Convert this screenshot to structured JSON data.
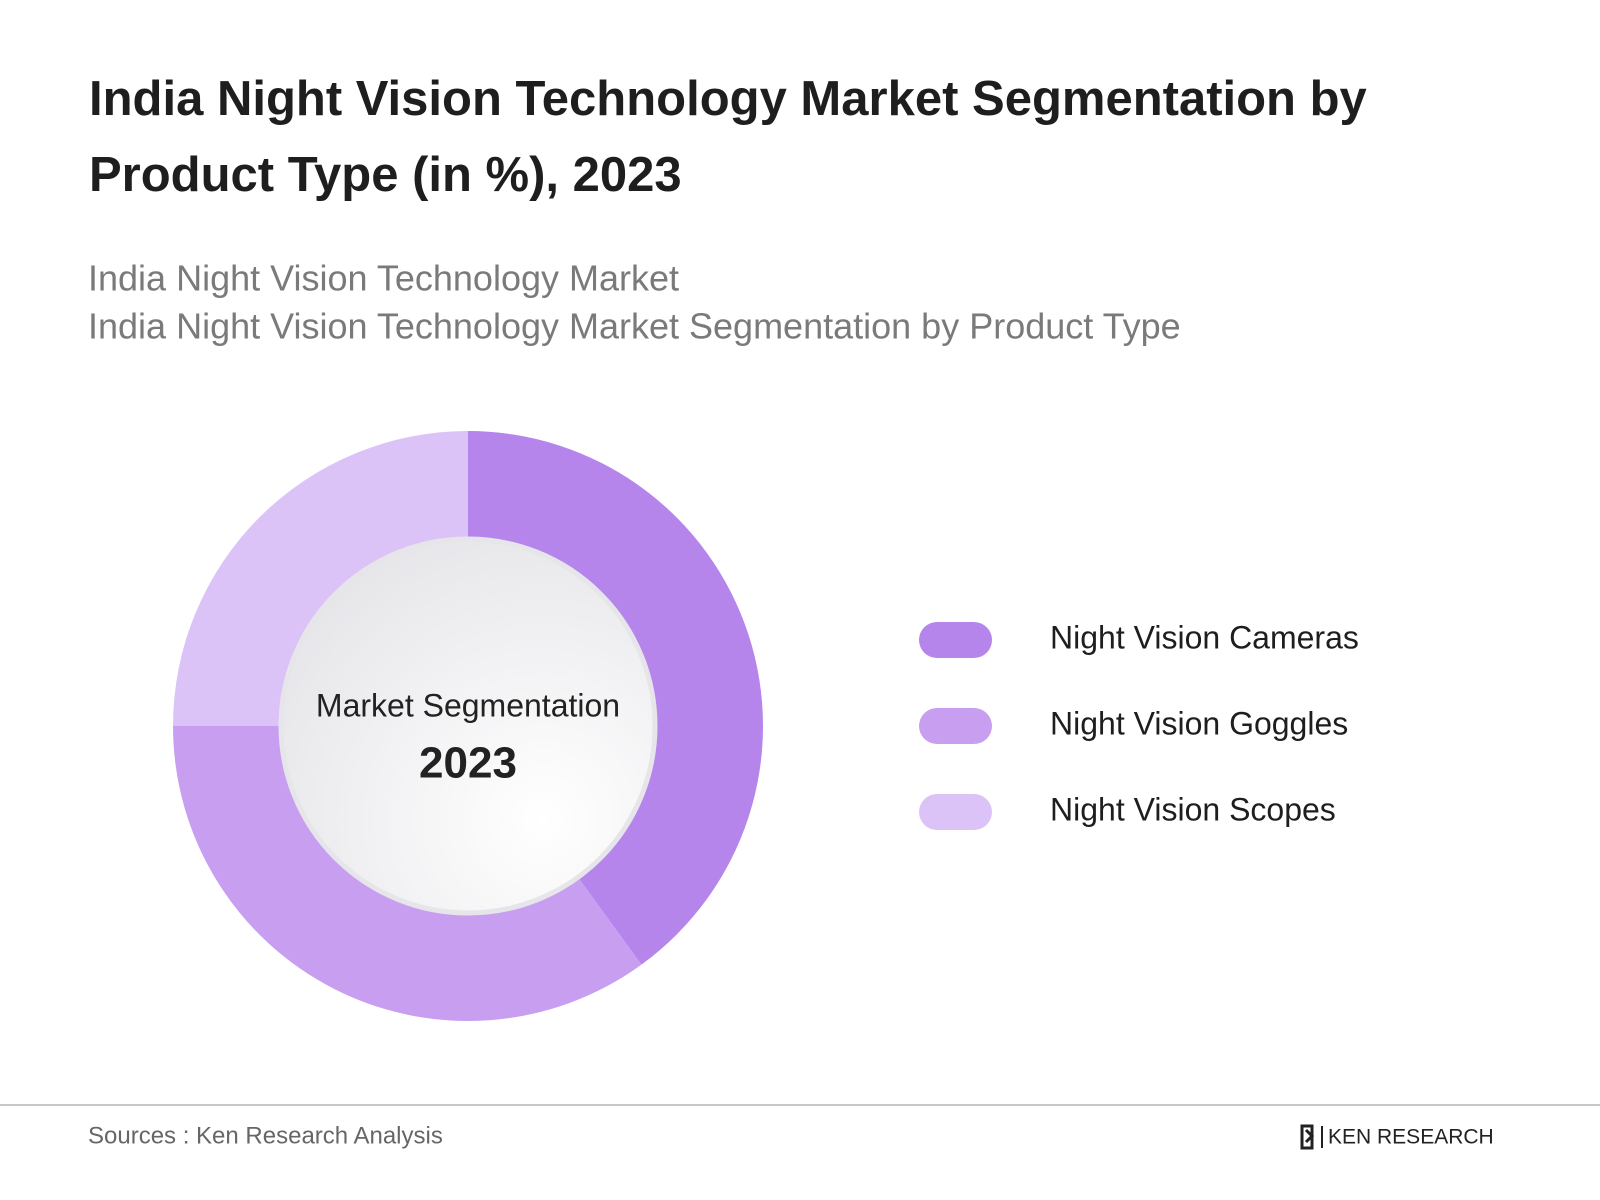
{
  "chart_data": {
    "type": "donut",
    "title": [
      "India Night Vision Technology Market Segmentation by",
      "Product Type (in %), 2023"
    ],
    "subtitle": [
      "India Night Vision Technology Market",
      "India Night Vision Technology Market Segmentation by Product Type"
    ],
    "center_label": "Market Segmentation",
    "center_year": "2023",
    "categories": [
      "Night Vision Cameras",
      "Night Vision Goggles",
      "Night Vision Scopes"
    ],
    "values": [
      40,
      35,
      25
    ],
    "colors": [
      "#b585ec",
      "#c89ef0",
      "#dcc3f7"
    ],
    "source": "Sources : Ken Research Analysis",
    "brand": "KEN RESEARCH"
  }
}
